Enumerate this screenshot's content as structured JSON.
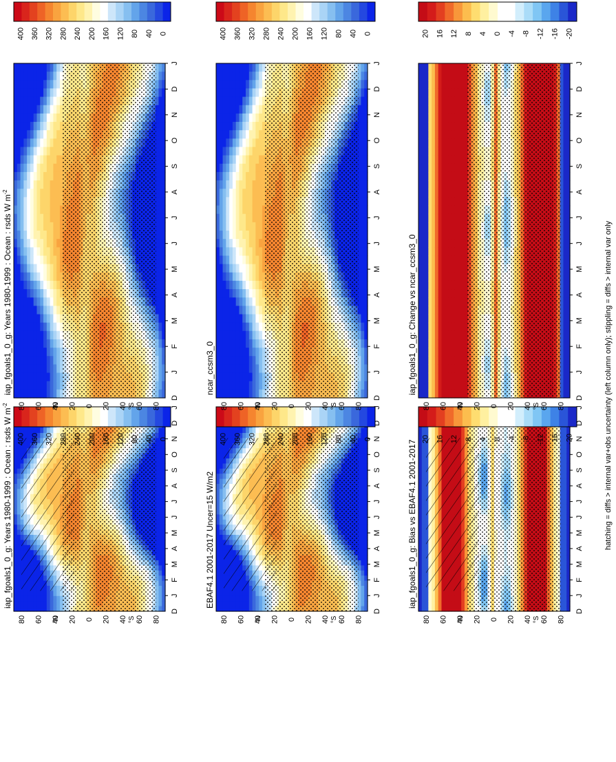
{
  "figure": {
    "footnote": "hatching = diffs > internal var+obs uncertainty (left column only); stippling = diffs > internal var only",
    "orientation": "rotated 90° clockwise"
  },
  "colors": {
    "abs": [
      "#0b24e8",
      "#2448e0",
      "#3a68dc",
      "#4c86e2",
      "#63a4ea",
      "#86bff0",
      "#aad4f6",
      "#cde6fa",
      "#ffffff",
      "#fffde0",
      "#fff3b0",
      "#fee88a",
      "#fdd56a",
      "#fcbd52",
      "#f9a33f",
      "#f5852f",
      "#ee6326",
      "#e3421f",
      "#d9251c",
      "#cc0a18"
    ],
    "diff": [
      "#1a28c8",
      "#2a55d8",
      "#3e82e6",
      "#5aa6ee",
      "#80c6f4",
      "#aadcf8",
      "#d2eefc",
      "#ffffff",
      "#ffffff",
      "#fffad0",
      "#fff0a0",
      "#fedd70",
      "#fcbd4e",
      "#f8973a",
      "#f06a2a",
      "#e33f20",
      "#d41c1a",
      "#c40c16"
    ]
  },
  "chart_data": [
    {
      "id": "model-bias-panel",
      "type": "heatmap",
      "title": "iap_fgoals1_0_g: Years 1980-1999 : Ocean : rsds W m",
      "title_superscript": "-2",
      "xlabel": "",
      "ylabel": "°N / °S",
      "months": [
        "J",
        "F",
        "M",
        "A",
        "M",
        "J",
        "J",
        "A",
        "S",
        "O",
        "N",
        "D",
        "J"
      ],
      "month_start": "D",
      "lat_ticks": [
        "80",
        "60",
        "40",
        "20",
        "0",
        "20",
        "40",
        "60",
        "80"
      ],
      "lat_range": [
        -90,
        90
      ],
      "colorbar": [
        "400",
        "360",
        "320",
        "280",
        "240",
        "200",
        "160",
        "120",
        "80",
        "40",
        "0"
      ],
      "range": [
        0,
        400
      ],
      "overlay": "hatching+stippling",
      "field": "abs"
    },
    {
      "id": "model-panel",
      "type": "heatmap",
      "title": "iap_fgoals1_0_g: Years 1980-1999 : Ocean : rsds W m",
      "title_superscript": "-2",
      "months": [
        "J",
        "F",
        "M",
        "A",
        "M",
        "J",
        "J",
        "A",
        "S",
        "O",
        "N",
        "D",
        "J"
      ],
      "month_start": "D",
      "lat_ticks": [
        "80",
        "60",
        "40",
        "20",
        "0",
        "20",
        "40",
        "60",
        "80"
      ],
      "lat_range": [
        -90,
        90
      ],
      "colorbar": [
        "400",
        "360",
        "320",
        "280",
        "240",
        "200",
        "160",
        "120",
        "80",
        "40",
        "0"
      ],
      "range": [
        0,
        400
      ],
      "overlay": "stippling",
      "field": "abs"
    },
    {
      "id": "obs-panel",
      "type": "heatmap",
      "title": "EBAF4.1 2001-2017 Uncer=15 W/m2",
      "months": [
        "J",
        "F",
        "M",
        "A",
        "M",
        "J",
        "J",
        "A",
        "S",
        "O",
        "N",
        "D",
        "J"
      ],
      "month_start": "D",
      "lat_ticks": [
        "80",
        "60",
        "40",
        "20",
        "0",
        "20",
        "40",
        "60",
        "80"
      ],
      "lat_range": [
        -90,
        90
      ],
      "colorbar": [
        "400",
        "360",
        "320",
        "280",
        "240",
        "200",
        "160",
        "120",
        "80",
        "40",
        "0"
      ],
      "range": [
        0,
        400
      ],
      "overlay": "hatching+stippling",
      "field": "abs"
    },
    {
      "id": "ref-model-panel",
      "type": "heatmap",
      "title": "ncar_ccsm3_0",
      "months": [
        "J",
        "F",
        "M",
        "A",
        "M",
        "J",
        "J",
        "A",
        "S",
        "O",
        "N",
        "D",
        "J"
      ],
      "month_start": "D",
      "lat_ticks": [
        "80",
        "60",
        "40",
        "20",
        "0",
        "20",
        "40",
        "60",
        "80"
      ],
      "lat_range": [
        -90,
        90
      ],
      "colorbar": [
        "400",
        "360",
        "320",
        "280",
        "240",
        "200",
        "160",
        "120",
        "80",
        "40",
        "0"
      ],
      "range": [
        0,
        400
      ],
      "overlay": "stippling",
      "field": "abs"
    },
    {
      "id": "bias-panel",
      "type": "heatmap",
      "title": "iap_fgoals1_0_g: Bias vs EBAF4.1 2001-2017",
      "months": [
        "J",
        "F",
        "M",
        "A",
        "M",
        "J",
        "J",
        "A",
        "S",
        "O",
        "N",
        "D",
        "J"
      ],
      "month_start": "D",
      "lat_ticks": [
        "80",
        "60",
        "40",
        "20",
        "0",
        "20",
        "40",
        "60",
        "80"
      ],
      "lat_range": [
        -90,
        90
      ],
      "colorbar": [
        "20",
        "16",
        "12",
        "8",
        "4",
        "0",
        "-4",
        "-8",
        "-12",
        "-16",
        "-20"
      ],
      "range": [
        -20,
        20
      ],
      "overlay": "hatching+stippling",
      "field": "bias"
    },
    {
      "id": "change-panel",
      "type": "heatmap",
      "title": "iap_fgoals1_0_g: Change vs ncar_ccsm3_0",
      "months": [
        "J",
        "F",
        "M",
        "A",
        "M",
        "J",
        "J",
        "A",
        "S",
        "O",
        "N",
        "D",
        "J"
      ],
      "month_start": "D",
      "lat_ticks": [
        "80",
        "60",
        "40",
        "20",
        "0",
        "20",
        "40",
        "60",
        "80"
      ],
      "lat_range": [
        -90,
        90
      ],
      "colorbar": [
        "20",
        "16",
        "12",
        "8",
        "4",
        "0",
        "-4",
        "-8",
        "-12",
        "-16",
        "-20"
      ],
      "range": [
        -20,
        20
      ],
      "overlay": "stippling",
      "field": "change"
    }
  ]
}
